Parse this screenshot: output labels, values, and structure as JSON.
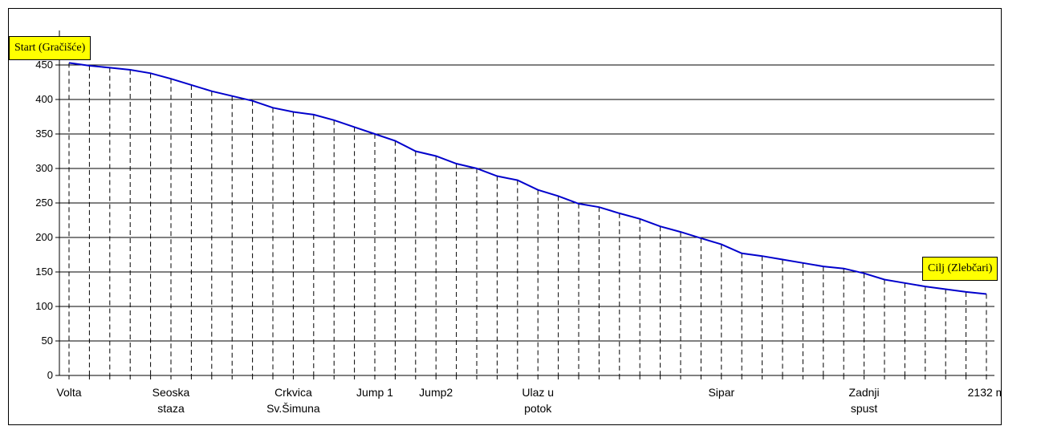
{
  "chart_data": {
    "type": "line",
    "title": "",
    "xlabel": "",
    "ylabel": "",
    "ylim": [
      0,
      450
    ],
    "yticks": [
      0,
      50,
      100,
      150,
      200,
      250,
      300,
      350,
      400,
      450
    ],
    "grid": true,
    "annotations": {
      "start": "Start (Gračišće)",
      "end": "Cilj (Zlebčari)"
    },
    "x_labels": [
      {
        "index": 0,
        "lines": [
          "Volta"
        ]
      },
      {
        "index": 5,
        "lines": [
          "Seoska",
          "staza"
        ]
      },
      {
        "index": 11,
        "lines": [
          "Crkvica",
          "Sv.Šimuna"
        ]
      },
      {
        "index": 15,
        "lines": [
          "Jump 1"
        ]
      },
      {
        "index": 18,
        "lines": [
          "Jump2"
        ]
      },
      {
        "index": 23,
        "lines": [
          "Ulaz u",
          "potok"
        ]
      },
      {
        "index": 32,
        "lines": [
          "Sipar"
        ]
      },
      {
        "index": 39,
        "lines": [
          "Zadnji",
          "spust"
        ]
      },
      {
        "index": 45,
        "lines": [
          "2132 m"
        ]
      }
    ],
    "series": [
      {
        "color": "#0000cc",
        "values": [
          453,
          449,
          446,
          443,
          438,
          430,
          421,
          412,
          405,
          398,
          388,
          382,
          378,
          370,
          360,
          350,
          340,
          325,
          318,
          307,
          300,
          289,
          283,
          269,
          260,
          249,
          244,
          235,
          227,
          216,
          208,
          199,
          190,
          177,
          173,
          168,
          163,
          158,
          155,
          148,
          139,
          134,
          129,
          125,
          121,
          118
        ]
      }
    ]
  }
}
